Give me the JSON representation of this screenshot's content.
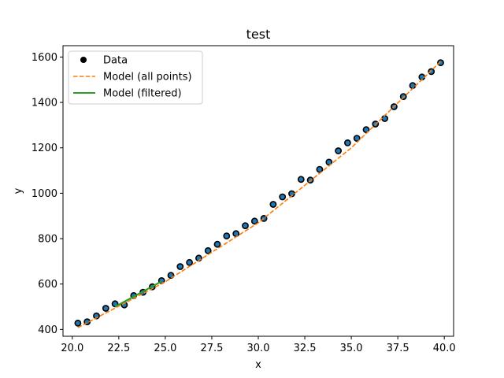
{
  "chart_data": {
    "type": "scatter",
    "title": "test",
    "xlabel": "x",
    "ylabel": "y",
    "xlim": [
      19.5,
      40.5
    ],
    "ylim": [
      370,
      1650
    ],
    "xticks": [
      20.0,
      22.5,
      25.0,
      27.5,
      30.0,
      32.5,
      35.0,
      37.5,
      40.0
    ],
    "xtick_labels": [
      "20.0",
      "22.5",
      "25.0",
      "27.5",
      "30.0",
      "32.5",
      "35.0",
      "37.5",
      "40.0"
    ],
    "yticks": [
      400,
      600,
      800,
      1000,
      1200,
      1400,
      1600
    ],
    "ytick_labels": [
      "400",
      "600",
      "800",
      "1000",
      "1200",
      "1400",
      "1600"
    ],
    "legend_position": "top-left",
    "series": [
      {
        "name": "Data",
        "kind": "scatter",
        "color": "#000000",
        "x": [
          20.3,
          20.8,
          21.3,
          21.8,
          22.3,
          22.8,
          23.3,
          23.8,
          24.3,
          24.8,
          25.3,
          25.8,
          26.3,
          26.8,
          27.3,
          27.8,
          28.3,
          28.8,
          29.3,
          29.8,
          30.3,
          30.8,
          31.3,
          31.8,
          32.3,
          32.8,
          33.3,
          33.8,
          34.3,
          34.8,
          35.3,
          35.8,
          36.3,
          36.8,
          37.3,
          37.8,
          38.3,
          38.8,
          39.3,
          39.8
        ],
        "y": [
          428,
          434,
          460,
          493,
          513,
          508,
          549,
          564,
          588,
          615,
          638,
          677,
          695,
          714,
          747,
          775,
          812,
          822,
          857,
          877,
          889,
          951,
          984,
          998,
          1061,
          1058,
          1105,
          1137,
          1187,
          1222,
          1242,
          1280,
          1305,
          1329,
          1381,
          1426,
          1474,
          1512,
          1536,
          1575
        ]
      },
      {
        "name": "Model (all points)",
        "kind": "line",
        "style": "dashed",
        "color": "#ff7f0e",
        "x": [
          20.3,
          25.0,
          30.0,
          35.0,
          39.8
        ],
        "y": [
          408,
          610,
          870,
          1200,
          1580
        ]
      },
      {
        "name": "Model (filtered)",
        "kind": "line",
        "style": "solid",
        "color": "#2ca02c",
        "x": [
          22.3,
          24.8
        ],
        "y": [
          500,
          612
        ]
      }
    ],
    "marker_face_color": "#1f77b4"
  }
}
